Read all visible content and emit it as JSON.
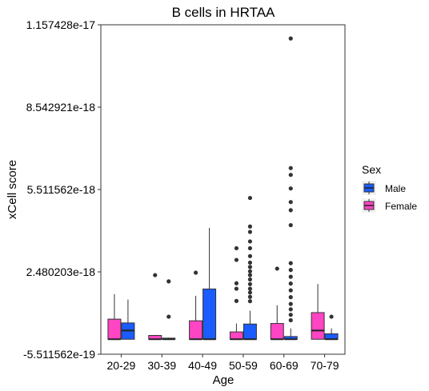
{
  "chart_data": {
    "type": "box",
    "title": "B cells in HRTAA",
    "xlabel": "Age",
    "ylabel": "xCell score",
    "categories": [
      "20-29",
      "30-39",
      "40-49",
      "50-59",
      "60-69",
      "70-79"
    ],
    "y_ticks": [
      -5.511562e-19,
      2.480203e-18,
      5.511562e-18,
      8.542921e-18,
      1.157428e-17
    ],
    "y_tick_labels": [
      "-5.511562e-19",
      "2.480203e-18",
      "5.511562e-18",
      "8.542921e-18",
      "1.157428e-17"
    ],
    "ylim": [
      -5.511562e-19,
      1.157428e-17
    ],
    "grid": false,
    "legend": {
      "title": "Sex",
      "position": "right",
      "entries": [
        {
          "name": "Male",
          "color": "#1a5cff"
        },
        {
          "name": "Female",
          "color": "#ff44c4"
        }
      ]
    },
    "series": [
      {
        "name": "Female",
        "color": "#ff44c4",
        "boxes": [
          {
            "category": "20-29",
            "min": 0,
            "q1": 0,
            "median": 0,
            "q3": 7.4e-19,
            "max": 1.66e-18,
            "outliers": []
          },
          {
            "category": "30-39",
            "min": 0,
            "q1": 0,
            "median": 0,
            "q3": 1.4e-19,
            "max": 1.6e-19,
            "outliers": [
              2.36e-18
            ]
          },
          {
            "category": "40-49",
            "min": 0,
            "q1": 0,
            "median": 0,
            "q3": 6.8e-19,
            "max": 1.6e-18,
            "outliers": [
              2.45e-18
            ]
          },
          {
            "category": "50-59",
            "min": 0,
            "q1": 0,
            "median": 0,
            "q3": 2.7e-19,
            "max": 5.8e-19,
            "outliers": [
              1.41e-18,
              1.86e-18,
              2.06e-18,
              2.92e-18,
              3.35e-18
            ]
          },
          {
            "category": "60-69",
            "min": 0,
            "q1": 0,
            "median": 0,
            "q3": 5.8e-19,
            "max": 1.25e-18,
            "outliers": [
              2.6e-18
            ]
          },
          {
            "category": "70-79",
            "min": 0,
            "q1": 0,
            "median": 3.2e-19,
            "q3": 9.8e-19,
            "max": 2.03e-18,
            "outliers": []
          }
        ]
      },
      {
        "name": "Male",
        "color": "#1a5cff",
        "boxes": [
          {
            "category": "20-29",
            "min": 0,
            "q1": 0,
            "median": 3.2e-19,
            "q3": 6e-19,
            "max": 1.46e-18,
            "outliers": []
          },
          {
            "category": "30-39",
            "min": 0,
            "q1": 0,
            "median": 0,
            "q3": 4e-20,
            "max": 6e-20,
            "outliers": [
              2.13e-18,
              8.3e-19
            ]
          },
          {
            "category": "40-49",
            "min": 0,
            "q1": 0,
            "median": 0,
            "q3": 1.85e-18,
            "max": 4.1e-18,
            "outliers": []
          },
          {
            "category": "50-59",
            "min": 0,
            "q1": 0,
            "median": 0,
            "q3": 5.6e-19,
            "max": 1.05e-18,
            "outliers": [
              1.4e-18,
              1.56e-18,
              1.72e-18,
              1.86e-18,
              2.03e-18,
              2.2e-18,
              2.36e-18,
              2.5e-18,
              2.66e-18,
              2.82e-18,
              3.06e-18,
              3.35e-18,
              3.6e-18,
              3.95e-18,
              4.15e-18,
              5.2e-18
            ]
          },
          {
            "category": "60-69",
            "min": 0,
            "q1": 0,
            "median": 0,
            "q3": 1e-19,
            "max": 4e-19,
            "outliers": [
              7e-19,
              9e-19,
              1.1e-18,
              1.3e-18,
              1.55e-18,
              1.8e-18,
              2.05e-18,
              2.3e-18,
              2.55e-18,
              2.8e-18,
              4.2e-18,
              4.75e-18,
              5.05e-18,
              5.55e-18,
              6.05e-18,
              6.3e-18,
              1.107e-17
            ]
          },
          {
            "category": "70-79",
            "min": 0,
            "q1": 0,
            "median": 0,
            "q3": 2e-19,
            "max": 4e-19,
            "outliers": [
              8.3e-19
            ]
          }
        ]
      }
    ]
  }
}
